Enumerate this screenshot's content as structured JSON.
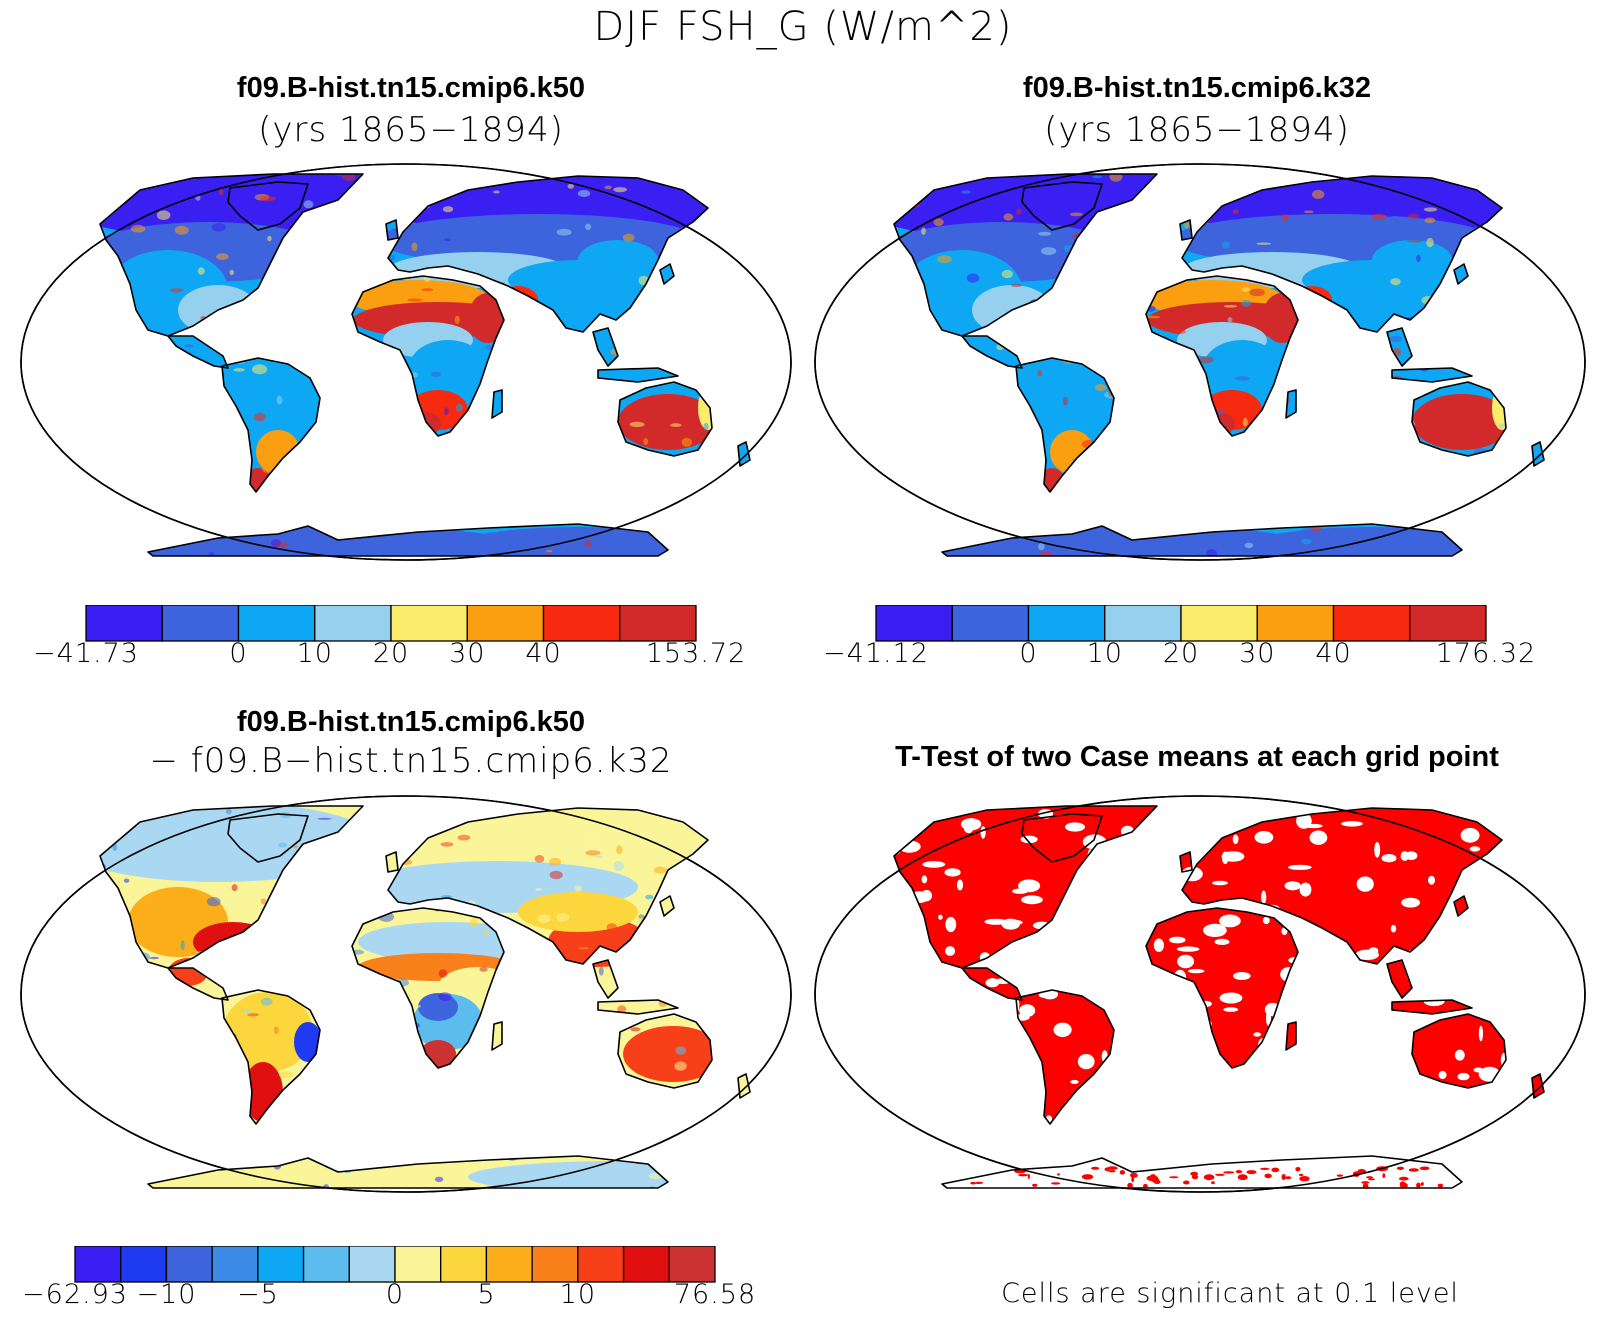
{
  "figure": {
    "title": "DJF FSH_G (W/m^2)"
  },
  "panels": [
    {
      "id": "k50",
      "title": "f09.B-hist.tn15.cmip6.k50",
      "subtitle": "(yrs 1865−1894)",
      "colorbar": {
        "colors": [
          "#3a1ff2",
          "#3d63dd",
          "#0ea7f3",
          "#95d0ee",
          "#fbec6b",
          "#fb9e0f",
          "#f7290e",
          "#d22a2a"
        ],
        "labels": [
          "−41.73",
          "0",
          "10",
          "20",
          "30",
          "40",
          "153.72"
        ],
        "label_boundaries": [
          0,
          2,
          3,
          4,
          5,
          6,
          8
        ]
      }
    },
    {
      "id": "k32",
      "title": "f09.B-hist.tn15.cmip6.k32",
      "subtitle": "(yrs 1865−1894)",
      "colorbar": {
        "colors": [
          "#3a1ff2",
          "#3d63dd",
          "#0ea7f3",
          "#95d0ee",
          "#fbec6b",
          "#fb9e0f",
          "#f7290e",
          "#d22a2a"
        ],
        "labels": [
          "−41.12",
          "0",
          "10",
          "20",
          "30",
          "40",
          "176.32"
        ],
        "label_boundaries": [
          0,
          2,
          3,
          4,
          5,
          6,
          8
        ]
      }
    },
    {
      "id": "diff",
      "title": "f09.B-hist.tn15.cmip6.k50",
      "subtitle": "− f09.B−hist.tn15.cmip6.k32",
      "colorbar": {
        "colors": [
          "#3a1ff2",
          "#1f3bf2",
          "#3d63dd",
          "#3b8be6",
          "#0ea7f3",
          "#5cbcee",
          "#aad8f2",
          "#fbf59a",
          "#fbd63c",
          "#fbad1a",
          "#f9801a",
          "#f7401a",
          "#e01010",
          "#cc3232"
        ],
        "labels": [
          "−62.93",
          "−10",
          "−5",
          "0",
          "5",
          "10",
          "76.58"
        ],
        "label_boundaries": [
          0,
          2,
          4,
          7,
          9,
          11,
          14
        ]
      }
    },
    {
      "id": "ttest",
      "title": "T-Test of two Case means at each grid point",
      "note": "Cells are significant at 0.1 level",
      "color": "#ff0000"
    }
  ]
}
